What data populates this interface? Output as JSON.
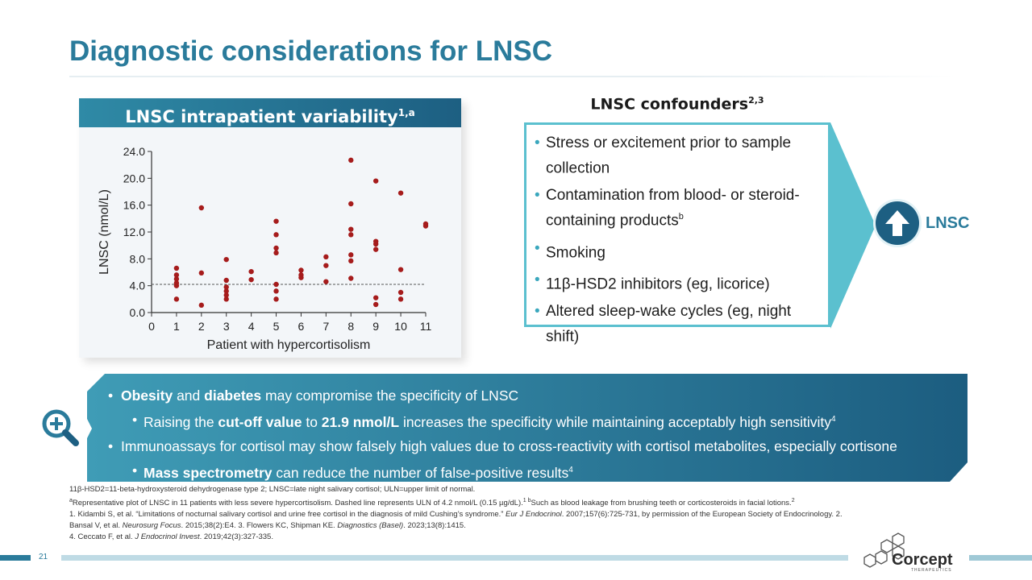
{
  "title": "Diagnostic considerations for LNSC",
  "chart_header": {
    "text": "LNSC intrapatient variability",
    "sup": "1,a"
  },
  "chart_data": {
    "type": "scatter",
    "xlabel": "Patient with hypercortisolism",
    "ylabel": "LNSC (nmol/L)",
    "xlim": [
      0,
      11
    ],
    "ylim": [
      0,
      24
    ],
    "x_ticks": [
      "0",
      "1",
      "2",
      "3",
      "4",
      "5",
      "6",
      "7",
      "8",
      "9",
      "10",
      "11"
    ],
    "y_ticks": [
      "0.0",
      "4.0",
      "8.0",
      "12.0",
      "16.0",
      "20.0",
      "24.0"
    ],
    "reference_line": {
      "y": 4.2,
      "style": "dashed"
    },
    "series": [
      {
        "color": "#a61c1c",
        "points": [
          [
            1,
            2.0
          ],
          [
            1,
            4.0
          ],
          [
            1,
            4.4
          ],
          [
            1,
            5.0
          ],
          [
            1,
            5.6
          ],
          [
            1,
            6.6
          ],
          [
            2,
            1.1
          ],
          [
            2,
            5.9
          ],
          [
            2,
            15.6
          ],
          [
            3,
            2.0
          ],
          [
            3,
            2.6
          ],
          [
            3,
            3.2
          ],
          [
            3,
            3.8
          ],
          [
            3,
            4.8
          ],
          [
            3,
            7.9
          ],
          [
            4,
            4.9
          ],
          [
            4,
            6.1
          ],
          [
            5,
            2.0
          ],
          [
            5,
            3.2
          ],
          [
            5,
            4.2
          ],
          [
            5,
            8.9
          ],
          [
            5,
            9.6
          ],
          [
            5,
            11.6
          ],
          [
            5,
            13.6
          ],
          [
            6,
            5.2
          ],
          [
            6,
            5.6
          ],
          [
            6,
            6.3
          ],
          [
            7,
            4.6
          ],
          [
            7,
            7.0
          ],
          [
            7,
            8.3
          ],
          [
            8,
            5.1
          ],
          [
            8,
            7.7
          ],
          [
            8,
            8.6
          ],
          [
            8,
            11.6
          ],
          [
            8,
            12.4
          ],
          [
            8,
            16.2
          ],
          [
            8,
            22.7
          ],
          [
            9,
            1.2
          ],
          [
            9,
            2.2
          ],
          [
            9,
            9.4
          ],
          [
            9,
            10.2
          ],
          [
            9,
            10.6
          ],
          [
            9,
            19.6
          ],
          [
            10,
            2.0
          ],
          [
            10,
            3.0
          ],
          [
            10,
            6.4
          ],
          [
            10,
            17.8
          ],
          [
            11,
            12.9
          ],
          [
            11,
            13.2
          ]
        ]
      }
    ]
  },
  "confounders": {
    "title": "LNSC confounders",
    "title_sup": "2,3",
    "items": [
      {
        "text": "Stress or excitement prior to sample collection",
        "sup": ""
      },
      {
        "text": "Contamination from blood- or steroid-containing products",
        "sup": "b"
      },
      {
        "text": "Smoking",
        "sup": ""
      },
      {
        "text": "11β-HSD2 inhibitors (eg, licorice)",
        "sup": ""
      },
      {
        "text": "Altered sleep-wake cycles (eg, night shift)",
        "sup": ""
      }
    ],
    "result_label": "LNSC"
  },
  "banner": {
    "b1": {
      "t1": "Obesity",
      "t2": " and ",
      "t3": "diabetes",
      "t4": " may compromise the specificity of LNSC"
    },
    "b2": {
      "t1": "Raising the ",
      "t2": "cut-off value",
      "t3": " to ",
      "t4": "21.9 nmol/L",
      "t5": " increases the specificity while maintaining acceptably high sensitivity",
      "sup": "4"
    },
    "b3": {
      "t1": "Immunoassays for cortisol may show falsely high values due to cross-reactivity with cortisol metabolites, especially cortisone"
    },
    "b4": {
      "t1": "Mass spectrometry",
      "t2": " can reduce the number of false-positive results",
      "sup": "4"
    }
  },
  "footnotes": {
    "abbrev": "11β-HSD2=11-beta-hydroxysteroid dehydrogenase type 2; LNSC=late night salivary cortisol; ULN=upper limit of normal.",
    "note_a_sup": "a",
    "note_a": "Representative plot of LNSC in 11 patients with less severe hypercortisolism. Dashed line represents ULN of 4.2 nmol/L (0.15 µg/dL).",
    "note_a_ref": "1",
    "note_b_sup": " b",
    "note_b": "Such as blood leakage from brushing teeth or corticosteroids in facial lotions.",
    "note_b_ref": "2",
    "ref1a": "1. Kidambi S, et al. “Limitations of nocturnal salivary cortisol and urine free cortisol in the diagnosis of mild Cushing’s syndrome.” ",
    "ref1_journal": "Eur J Endocrinol",
    "ref1b": ". 2007;157(6):725-731, by permission of the European Society of Endocrinology. 2. Bansal V, et al. ",
    "ref2_journal": "Neurosurg Focus",
    "ref1c": ". 2015;38(2):E4. 3. Flowers KC, Shipman KE. ",
    "ref3_journal": "Diagnostics (Basel)",
    "ref1d": ". 2023;13(8):1415.",
    "ref4a": "4. Ceccato F, et al. ",
    "ref4_journal": "J Endocrinol Invest",
    "ref4b": ". 2019;42(3):327-335."
  },
  "page_number": "21",
  "logo": {
    "name": "Corcept",
    "sub": "THERAPEUTICS"
  }
}
